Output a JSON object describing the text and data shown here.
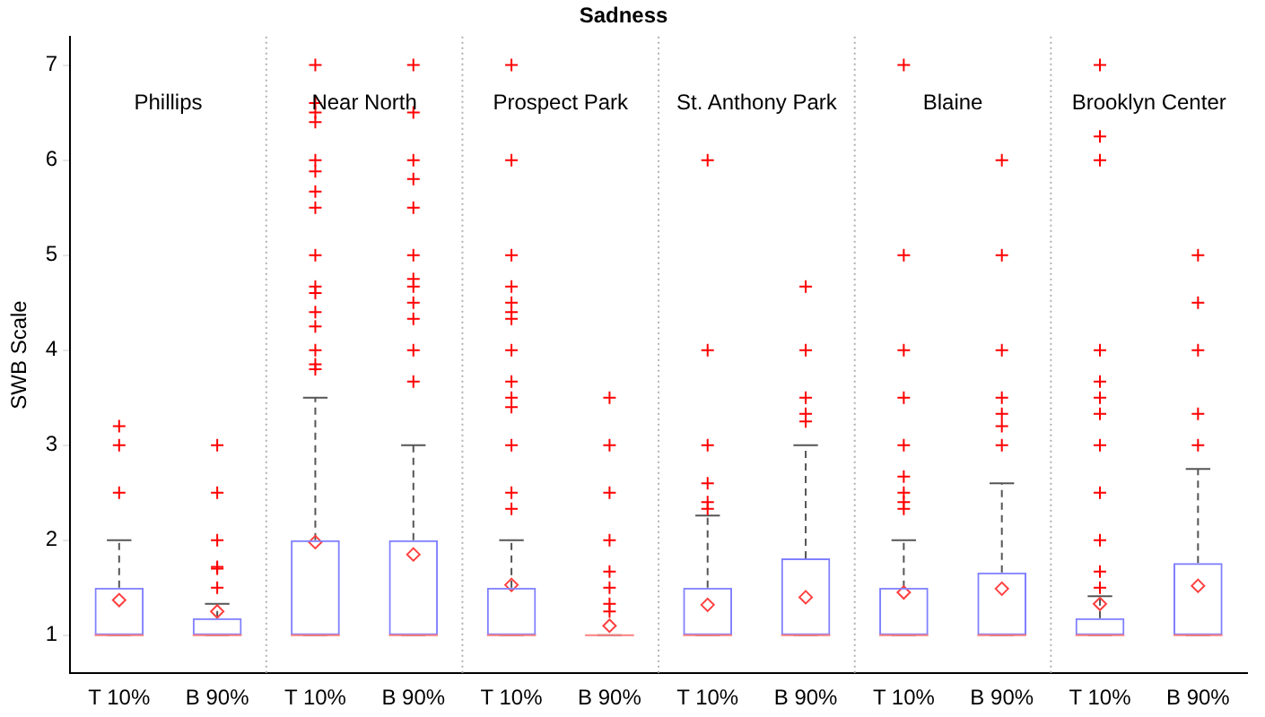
{
  "chart_data": {
    "type": "box",
    "title": "Sadness",
    "ylabel": "SWB Scale",
    "categories": [
      "T 10%",
      "B 90%",
      "T 10%",
      "B 90%",
      "T 10%",
      "B 90%",
      "T 10%",
      "B 90%",
      "T 10%",
      "B 90%",
      "T 10%",
      "B 90%"
    ],
    "annotations": [
      "Phillips",
      "Near North",
      "Prospect Park",
      "St. Anthony Park",
      "Blaine",
      "Brooklyn Center"
    ],
    "ylim": [
      0.6,
      7.3
    ],
    "yticks": [
      1,
      2,
      3,
      4,
      5,
      6,
      7
    ],
    "grid": false,
    "boxes": [
      {
        "low": 1,
        "q1": 1,
        "median": 1,
        "q3": 1.5,
        "high": 2,
        "mean": 1.37,
        "outliers": [
          2.5,
          3,
          3.2
        ]
      },
      {
        "low": 1,
        "q1": 1,
        "median": 1,
        "q3": 1.18,
        "high": 1.33,
        "mean": 1.25,
        "outliers": [
          1.5,
          1.7,
          1.72,
          2,
          2.5,
          3
        ]
      },
      {
        "low": 1,
        "q1": 1,
        "median": 1,
        "q3": 2,
        "high": 3.5,
        "mean": 1.98,
        "outliers": [
          3.8,
          3.85,
          4,
          4.25,
          4.4,
          4.6,
          4.67,
          5,
          5.5,
          5.67,
          5.88,
          6,
          6.4,
          6.5,
          6.6,
          7
        ]
      },
      {
        "low": 1,
        "q1": 1,
        "median": 1,
        "q3": 2,
        "high": 3,
        "mean": 1.85,
        "outliers": [
          3.67,
          4,
          4.33,
          4.5,
          4.67,
          4.75,
          5,
          5.5,
          5.8,
          6,
          6.5,
          7
        ]
      },
      {
        "low": 1,
        "q1": 1,
        "median": 1,
        "q3": 1.5,
        "high": 2,
        "mean": 1.53,
        "outliers": [
          2.33,
          2.5,
          3,
          3.4,
          3.5,
          3.67,
          4,
          4.33,
          4.4,
          4.5,
          4.67,
          5,
          6,
          7
        ]
      },
      {
        "low": 1,
        "q1": 1,
        "median": 1,
        "q3": 1,
        "high": 1,
        "mean": 1.1,
        "outliers": [
          1.25,
          1.33,
          1.5,
          1.67,
          2,
          2.5,
          3,
          3.5
        ]
      },
      {
        "low": 1,
        "q1": 1,
        "median": 1,
        "q3": 1.5,
        "high": 2.26,
        "mean": 1.32,
        "outliers": [
          2.33,
          2.4,
          2.6,
          3,
          4,
          6
        ]
      },
      {
        "low": 1,
        "q1": 1,
        "median": 1,
        "q3": 1.81,
        "high": 3,
        "mean": 1.4,
        "outliers": [
          3.25,
          3.33,
          3.5,
          4,
          4.67
        ]
      },
      {
        "low": 1,
        "q1": 1,
        "median": 1,
        "q3": 1.5,
        "high": 2,
        "mean": 1.45,
        "outliers": [
          2.33,
          2.4,
          2.5,
          2.67,
          3,
          3.5,
          4,
          5,
          7
        ]
      },
      {
        "low": 1,
        "q1": 1,
        "median": 1,
        "q3": 1.66,
        "high": 2.6,
        "mean": 1.49,
        "outliers": [
          3,
          3.2,
          3.33,
          3.5,
          4,
          5,
          6
        ]
      },
      {
        "low": 1,
        "q1": 1,
        "median": 1,
        "q3": 1.18,
        "high": 1.41,
        "mean": 1.33,
        "outliers": [
          1.5,
          1.67,
          2,
          2.5,
          3,
          3.33,
          3.5,
          3.67,
          4,
          6,
          6.25,
          7
        ]
      },
      {
        "low": 1,
        "q1": 1,
        "median": 1,
        "q3": 1.76,
        "high": 2.75,
        "mean": 1.52,
        "outliers": [
          3,
          3.33,
          4,
          4.5,
          5
        ]
      }
    ]
  }
}
